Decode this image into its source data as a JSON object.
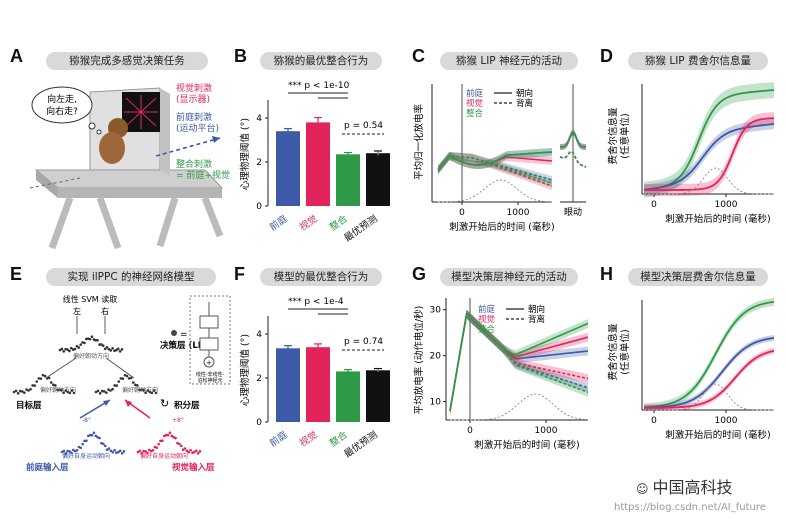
{
  "panels": {
    "A": "A",
    "B": "B",
    "C": "C",
    "D": "D",
    "E": "E",
    "F": "F",
    "G": "G",
    "H": "H"
  },
  "titles": {
    "A": "猕猴完成多感觉决策任务",
    "B": "猕猴的最优整合行为",
    "C": "猕猴 LIP 神经元的活动",
    "D": "猕猴 LIP 费舍尔信息量",
    "E": "实现 ilPPC 的神经网络模型",
    "F": "模型的最优整合行为",
    "G": "模型决策层神经元的活动",
    "H": "模型决策层费舍尔信息量"
  },
  "panelA": {
    "bubble": "向左走,\n向右走?",
    "visual": "视觉刺激\n(显示器)",
    "vestibular": "前庭刺激\n(运动平台)",
    "combined": "整合刺激\n= 前庭+视觉"
  },
  "panelE": {
    "svm": "线性 SVM 读取",
    "left": "左",
    "right": "右",
    "decision_layer": "决策层 (LIP)",
    "pref_dir": "偏好朝动方向",
    "target_layer": "目标层",
    "integration_layer": "积分层",
    "vest_input": "前庭输入层",
    "vis_input": "视觉输入层",
    "pref_motion": "偏好自身运动朝向",
    "box_note": "线性-非线性-\n泊松神经元",
    "deg_left": "-8°",
    "deg_right": "+8°"
  },
  "behavior": {
    "ylabel": "心理物理阈值 (°)",
    "categories": [
      "前庭",
      "视觉",
      "整合",
      "最优预测"
    ],
    "B": {
      "values": [
        3.4,
        3.8,
        2.35,
        2.4
      ],
      "errors": [
        0.12,
        0.22,
        0.08,
        0.1
      ],
      "sig1": "*** p < 1e-10",
      "sig2": "p = 0.54"
    },
    "F": {
      "values": [
        3.35,
        3.4,
        2.3,
        2.35
      ],
      "errors": [
        0.12,
        0.15,
        0.08,
        0.08
      ],
      "sig1": "*** p < 1e-4",
      "sig2": "p = 0.74"
    },
    "yticks": [
      "0",
      "2",
      "4"
    ]
  },
  "traces": {
    "C": {
      "ylabel": "平均归一化放电率",
      "xlabel": "刺激开始后的时间 (毫秒)",
      "xtick": [
        "0",
        "1000"
      ],
      "extra_label": "眼动"
    },
    "G": {
      "ylabel": "平均放电率 (动作电位/秒)",
      "xlabel": "刺激开始后的时间 (毫秒)",
      "xtick": [
        "0",
        "1000"
      ],
      "yticks": [
        "10",
        "20",
        "30"
      ]
    },
    "D": {
      "ylabel": "费舍尔信息量\n(任意单位)",
      "xlabel": "刺激开始后的时间 (毫秒)",
      "xtick": [
        "0",
        "1000"
      ]
    },
    "H": {
      "ylabel": "费舍尔信息量\n(任意单位)",
      "xlabel": "刺激开始后的时间 (毫秒)",
      "xtick": [
        "0",
        "1000"
      ]
    },
    "legend": {
      "vest": "前庭",
      "vis": "视觉",
      "comb": "整合",
      "toward": "朝向",
      "away": "背离"
    }
  },
  "colors": {
    "vest": "#3d5aa8",
    "vis": "#e2245a",
    "comb": "#2e9a48",
    "opt": "#111111",
    "gray": "#d9d9d9"
  },
  "footer": {
    "brand": "中国高科技",
    "url": "https://blog.csdn.net/AI_future"
  }
}
